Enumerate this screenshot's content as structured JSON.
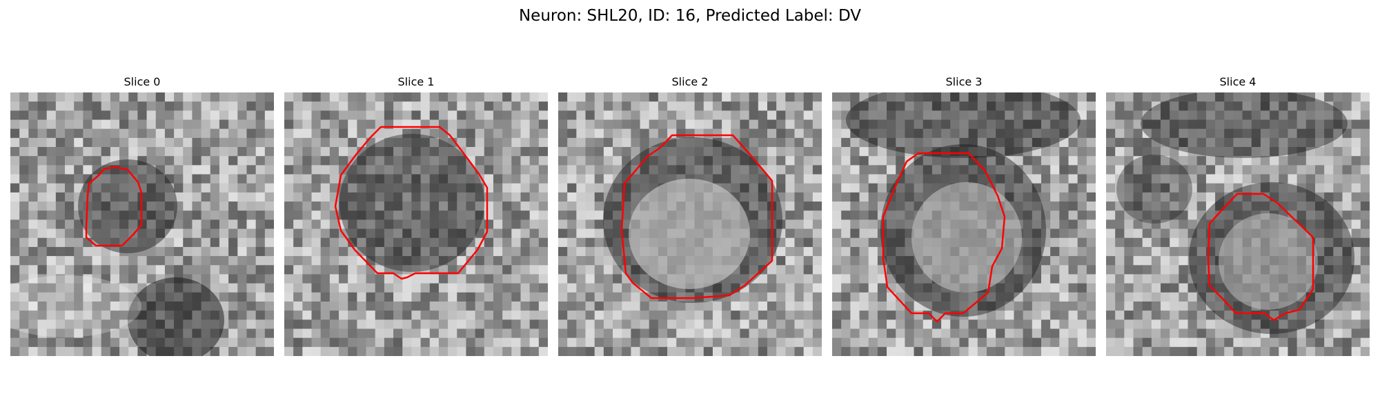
{
  "figure": {
    "title": "Neuron: SHL20, ID: 16, Predicted Label: DV",
    "outline_color": "#ff0000",
    "colormap": "gray"
  },
  "slices": [
    {
      "label": "Slice 0"
    },
    {
      "label": "Slice 1"
    },
    {
      "label": "Slice 2"
    },
    {
      "label": "Slice 3"
    },
    {
      "label": "Slice 4"
    }
  ]
}
